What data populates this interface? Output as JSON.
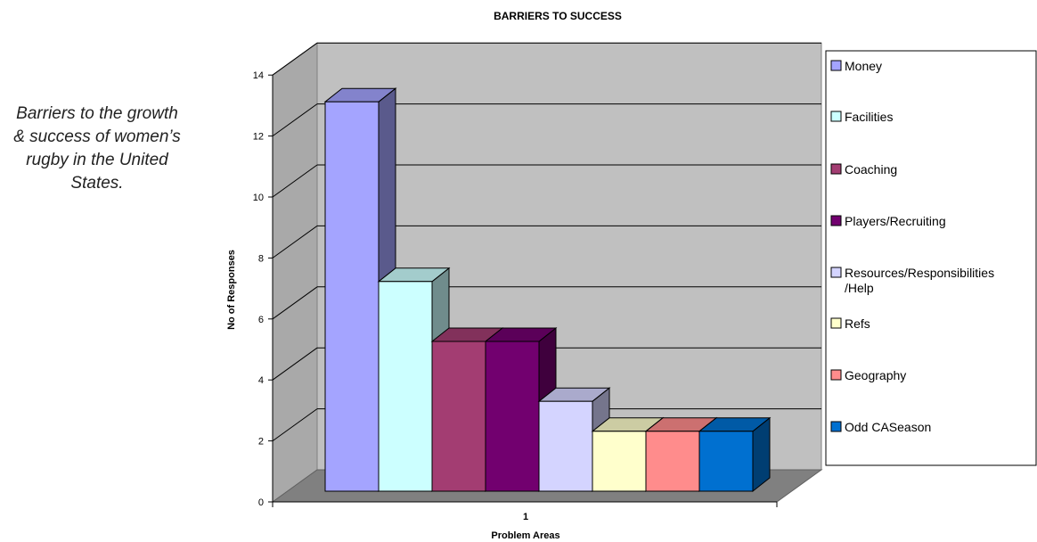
{
  "caption": "Barriers to the growth & success of women’s rugby in the United States.",
  "chart_data": {
    "type": "bar",
    "title": "BARRIERS TO SUCCESS",
    "xlabel": "Problem Areas",
    "ylabel": "No of Responses",
    "categories": [
      "1"
    ],
    "ylim": [
      0,
      14
    ],
    "yticks": [
      0,
      2,
      4,
      6,
      8,
      10,
      12,
      14
    ],
    "grid": true,
    "legend_position": "right",
    "series": [
      {
        "name": "Money",
        "values": [
          13
        ],
        "color": "#a4a4ff"
      },
      {
        "name": "Facilities",
        "values": [
          7
        ],
        "color": "#ccffff"
      },
      {
        "name": "Coaching",
        "values": [
          5
        ],
        "color": "#a33d72"
      },
      {
        "name": "Players/Recruiting",
        "values": [
          5
        ],
        "color": "#72006f"
      },
      {
        "name": "Resources/Responsibilities\n/Help",
        "values": [
          3
        ],
        "color": "#d4d4ff"
      },
      {
        "name": "Refs",
        "values": [
          2
        ],
        "color": "#ffffcc"
      },
      {
        "name": "Geography",
        "values": [
          2
        ],
        "color": "#ff8c8c"
      },
      {
        "name": "Odd CASeason",
        "values": [
          2
        ],
        "color": "#0070d0"
      }
    ]
  }
}
